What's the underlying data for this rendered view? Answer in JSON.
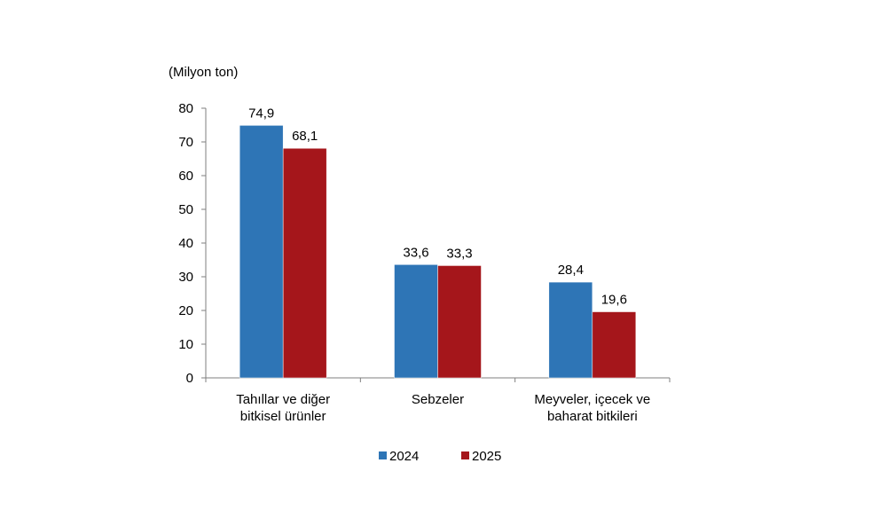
{
  "chart_data": {
    "type": "bar",
    "unit_label": "(Milyon ton)",
    "categories": [
      [
        "Tahıllar ve diğer",
        "bitkisel ürünler"
      ],
      [
        "Sebzeler"
      ],
      [
        "Meyveler, içecek ve",
        "baharat  bitkileri"
      ]
    ],
    "series": [
      {
        "name": "2024",
        "color": "#2E75B6",
        "values": [
          74.9,
          33.6,
          28.4
        ],
        "labels": [
          "74,9",
          "33,6",
          "28,4"
        ]
      },
      {
        "name": "2025",
        "color": "#A5161B",
        "values": [
          68.1,
          33.3,
          19.6
        ],
        "labels": [
          "68,1",
          "33,3",
          "19,6"
        ]
      }
    ],
    "ylim": [
      0,
      80
    ],
    "yticks": [
      0,
      10,
      20,
      30,
      40,
      50,
      60,
      70,
      80
    ],
    "grid": false,
    "legend_position": "bottom"
  }
}
